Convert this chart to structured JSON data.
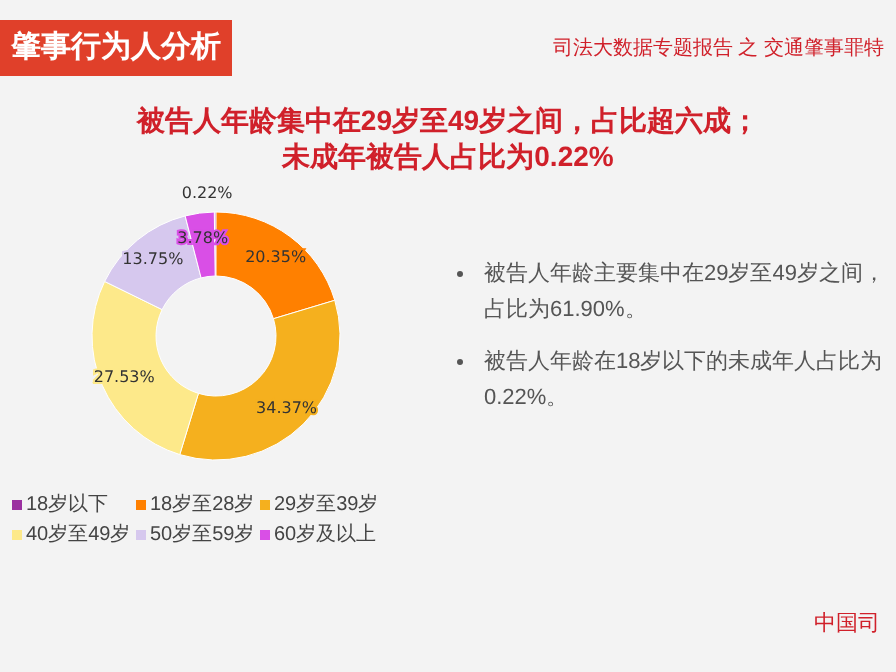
{
  "chart_data": {
    "type": "donut",
    "title": "被告人年龄集中在29岁至49岁之间，占比超六成；",
    "subtitle": "未成年被告人占比为0.22%",
    "categories": [
      "18岁以下",
      "18岁至28岁",
      "29岁至39岁",
      "40岁至49岁",
      "50岁至59岁",
      "60岁及以上"
    ],
    "values": [
      0.22,
      20.35,
      34.37,
      27.53,
      13.75,
      3.78
    ],
    "colors": [
      "#9b30a0",
      "#ff8000",
      "#f5b01e",
      "#fde98a",
      "#d6c8ee",
      "#d94fe6"
    ],
    "value_labels": [
      "0.22%",
      "20.35%",
      "34.37%",
      "27.53%",
      "13.75%",
      "3.78%"
    ],
    "legend": "bottom",
    "annotations": [
      "肇事行为人分析",
      "司法大数据专题报告 之 交通肇事罪特",
      "被告人年龄主要集中在29岁至49岁之间，占比为61.90%。",
      "被告人年龄在18岁以下的未成年人占比为0.22%。",
      "中国司"
    ]
  }
}
